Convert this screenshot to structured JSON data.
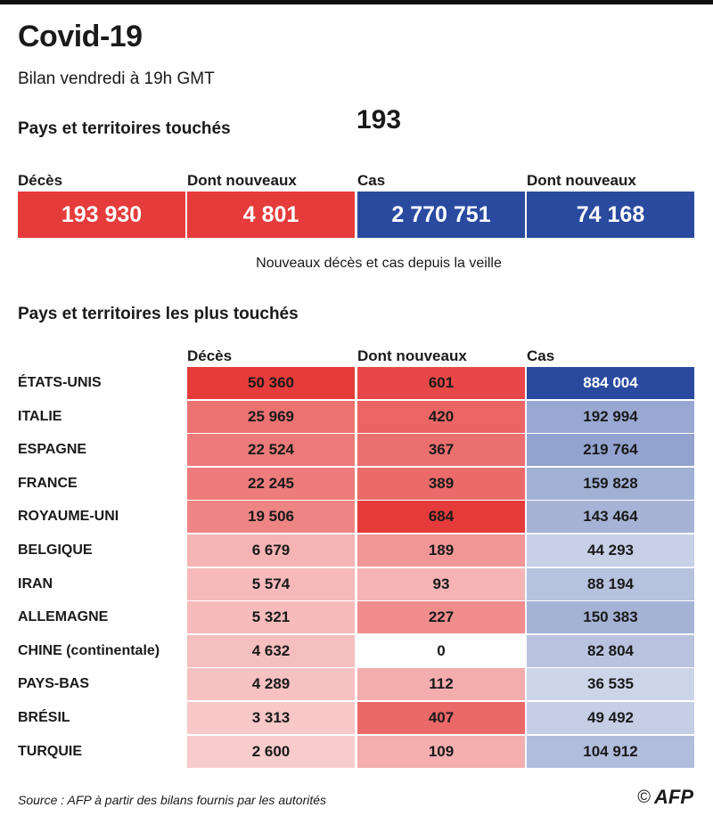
{
  "title": "Covid-19",
  "subtitle": "Bilan vendredi à 19h GMT",
  "countries_affected": {
    "label": "Pays et territoires touchés",
    "value": "193"
  },
  "summary": [
    {
      "label": "Décès",
      "value": "193 930",
      "color": "#e53b3b"
    },
    {
      "label": "Dont nouveaux",
      "value": "4 801",
      "color": "#e53b3b"
    },
    {
      "label": "Cas",
      "value": "2 770 751",
      "color": "#2a4aa0"
    },
    {
      "label": "Dont nouveaux",
      "value": "74 168",
      "color": "#2a4aa0"
    }
  ],
  "note": "Nouveaux décès et cas depuis la veille",
  "table_title": "Pays et territoires les plus touchés",
  "chart_data": {
    "type": "table",
    "columns": [
      "Décès",
      "Dont nouveaux",
      "Cas"
    ],
    "rows": [
      {
        "country": "ÉTATS-UNIS",
        "deces": "50 360",
        "nouveaux": "601",
        "cas": "884 004"
      },
      {
        "country": "ITALIE",
        "deces": "25 969",
        "nouveaux": "420",
        "cas": "192 994"
      },
      {
        "country": "ESPAGNE",
        "deces": "22 524",
        "nouveaux": "367",
        "cas": "219 764"
      },
      {
        "country": "FRANCE",
        "deces": "22 245",
        "nouveaux": "389",
        "cas": "159 828"
      },
      {
        "country": "ROYAUME-UNI",
        "deces": "19 506",
        "nouveaux": "684",
        "cas": "143 464"
      },
      {
        "country": "BELGIQUE",
        "deces": "6 679",
        "nouveaux": "189",
        "cas": "44 293"
      },
      {
        "country": "IRAN",
        "deces": "5 574",
        "nouveaux": "93",
        "cas": "88 194"
      },
      {
        "country": "ALLEMAGNE",
        "deces": "5 321",
        "nouveaux": "227",
        "cas": "150 383"
      },
      {
        "country": "CHINE (continentale)",
        "deces": "4 632",
        "nouveaux": "0",
        "cas": "82 804"
      },
      {
        "country": "PAYS-BAS",
        "deces": "4 289",
        "nouveaux": "112",
        "cas": "36 535"
      },
      {
        "country": "BRÉSIL",
        "deces": "3 313",
        "nouveaux": "407",
        "cas": "49 492"
      },
      {
        "country": "TURQUIE",
        "deces": "2 600",
        "nouveaux": "109",
        "cas": "104 912"
      }
    ],
    "colors": {
      "high_red": "#e53b3b",
      "high_blue": "#2a4aa0"
    }
  },
  "source": "Source : AFP à partir des bilans fournis par les autorités",
  "credit": {
    "copyright": "©",
    "logo": "AFP"
  }
}
